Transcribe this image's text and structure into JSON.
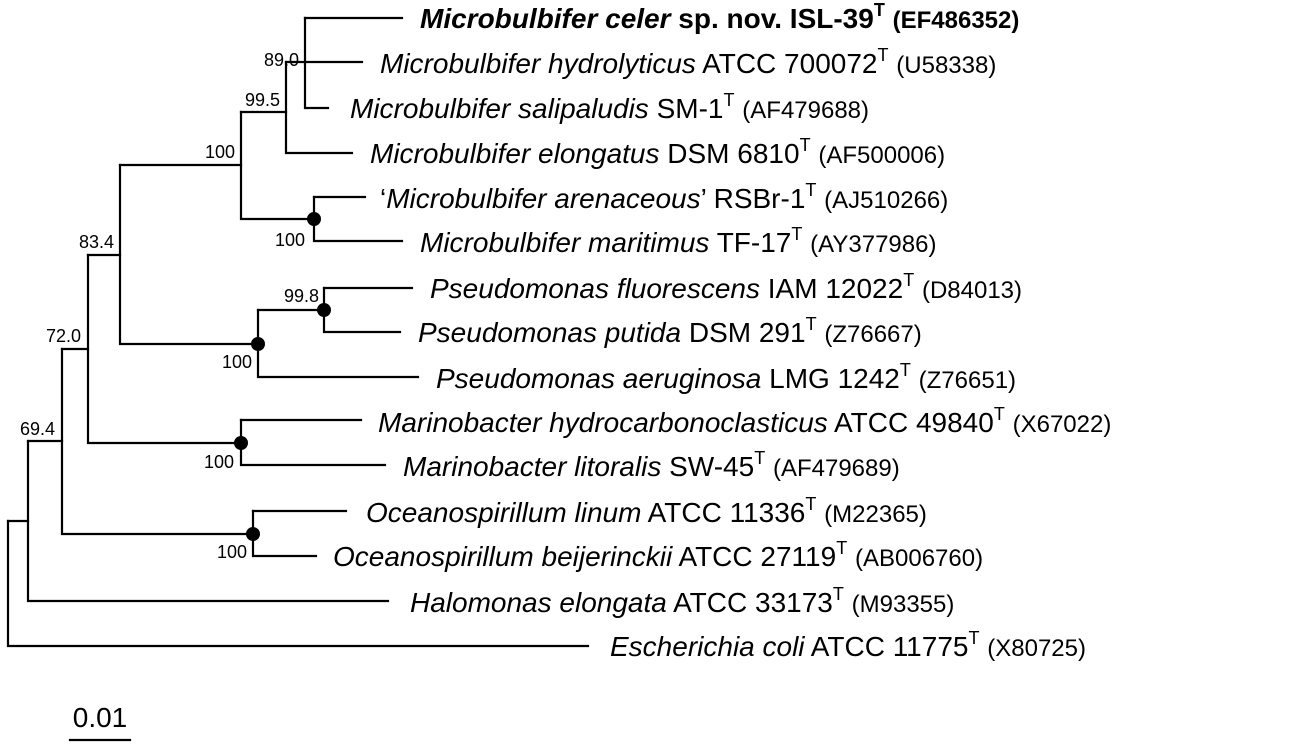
{
  "taxa": [
    {
      "genus": "Microbulbifer",
      "species": "celer",
      "extra": " sp. nov. ",
      "strain": "ISL-39",
      "sup": "T",
      "acc": "(EF486352)",
      "bold": true
    },
    {
      "genus": "Microbulbifer",
      "species": "hydrolyticus",
      "extra": "",
      "strain": "ATCC 700072",
      "sup": "T",
      "acc": "(U58338)"
    },
    {
      "genus": "Microbulbifer",
      "species": "salipaludis",
      "extra": "",
      "strain": "SM-1",
      "sup": "T",
      "acc": "(AF479688)"
    },
    {
      "genus": "Microbulbifer",
      "species": "elongatus",
      "extra": "",
      "strain": "DSM 6810",
      "sup": "T",
      "acc": "(AF500006)"
    },
    {
      "genus": "Microbulbifer",
      "species": "arenaceous",
      "quoted": true,
      "extra": "",
      "strain": "RSBr-1",
      "sup": "T",
      "acc": "(AJ510266)"
    },
    {
      "genus": "Microbulbifer",
      "species": "maritimus",
      "extra": "",
      "strain": "TF-17",
      "sup": "T",
      "acc": "(AY377986)"
    },
    {
      "genus": "Pseudomonas",
      "species": "fluorescens",
      "extra": "",
      "strain": "IAM 12022",
      "sup": "T",
      "acc": "(D84013)"
    },
    {
      "genus": "Pseudomonas",
      "species": "putida",
      "extra": "",
      "strain": "DSM 291",
      "sup": "T",
      "acc": "(Z76667)"
    },
    {
      "genus": "Pseudomonas",
      "species": "aeruginosa",
      "extra": "",
      "strain": "LMG 1242",
      "sup": "T",
      "acc": "(Z76651)"
    },
    {
      "genus": "Marinobacter",
      "species": "hydrocarbonoclasticus",
      "extra": "",
      "strain": "ATCC 49840",
      "sup": "T",
      "acc": "(X67022)"
    },
    {
      "genus": "Marinobacter",
      "species": "litoralis",
      "extra": "",
      "strain": "SW-45",
      "sup": "T",
      "acc": "(AF479689)"
    },
    {
      "genus": "Oceanospirillum",
      "species": "linum",
      "extra": "",
      "strain": "ATCC 11336",
      "sup": "T",
      "acc": "(M22365)"
    },
    {
      "genus": "Oceanospirillum",
      "species": "beijerinckii",
      "extra": "",
      "strain": "ATCC 27119",
      "sup": "T",
      "acc": "(AB006760)"
    },
    {
      "genus": "Halomonas",
      "species": "elongata",
      "extra": "",
      "strain": "ATCC 33173",
      "sup": "T",
      "acc": "(M93355)"
    },
    {
      "genus": "Escherichia",
      "species": "coli",
      "extra": "",
      "strain": "ATCC 11775",
      "sup": "T",
      "acc": "(X80725)"
    }
  ],
  "bootstrap": {
    "celer_hydrolyticus": "89.0",
    "with_salipaludis": "99.5",
    "microbulbifer_clade": "100",
    "arenaceous_maritimus": "100",
    "fluorescens_putida": "99.8",
    "pseudomonas_clade": "100",
    "microbulbifer_pseudomonas": "83.4",
    "with_marinobacter": "72.0",
    "marinobacter_clade": "100",
    "oceanospirillum_clade": "100",
    "ingroup": "69.4"
  },
  "scale_bar": {
    "label": "0.01"
  }
}
